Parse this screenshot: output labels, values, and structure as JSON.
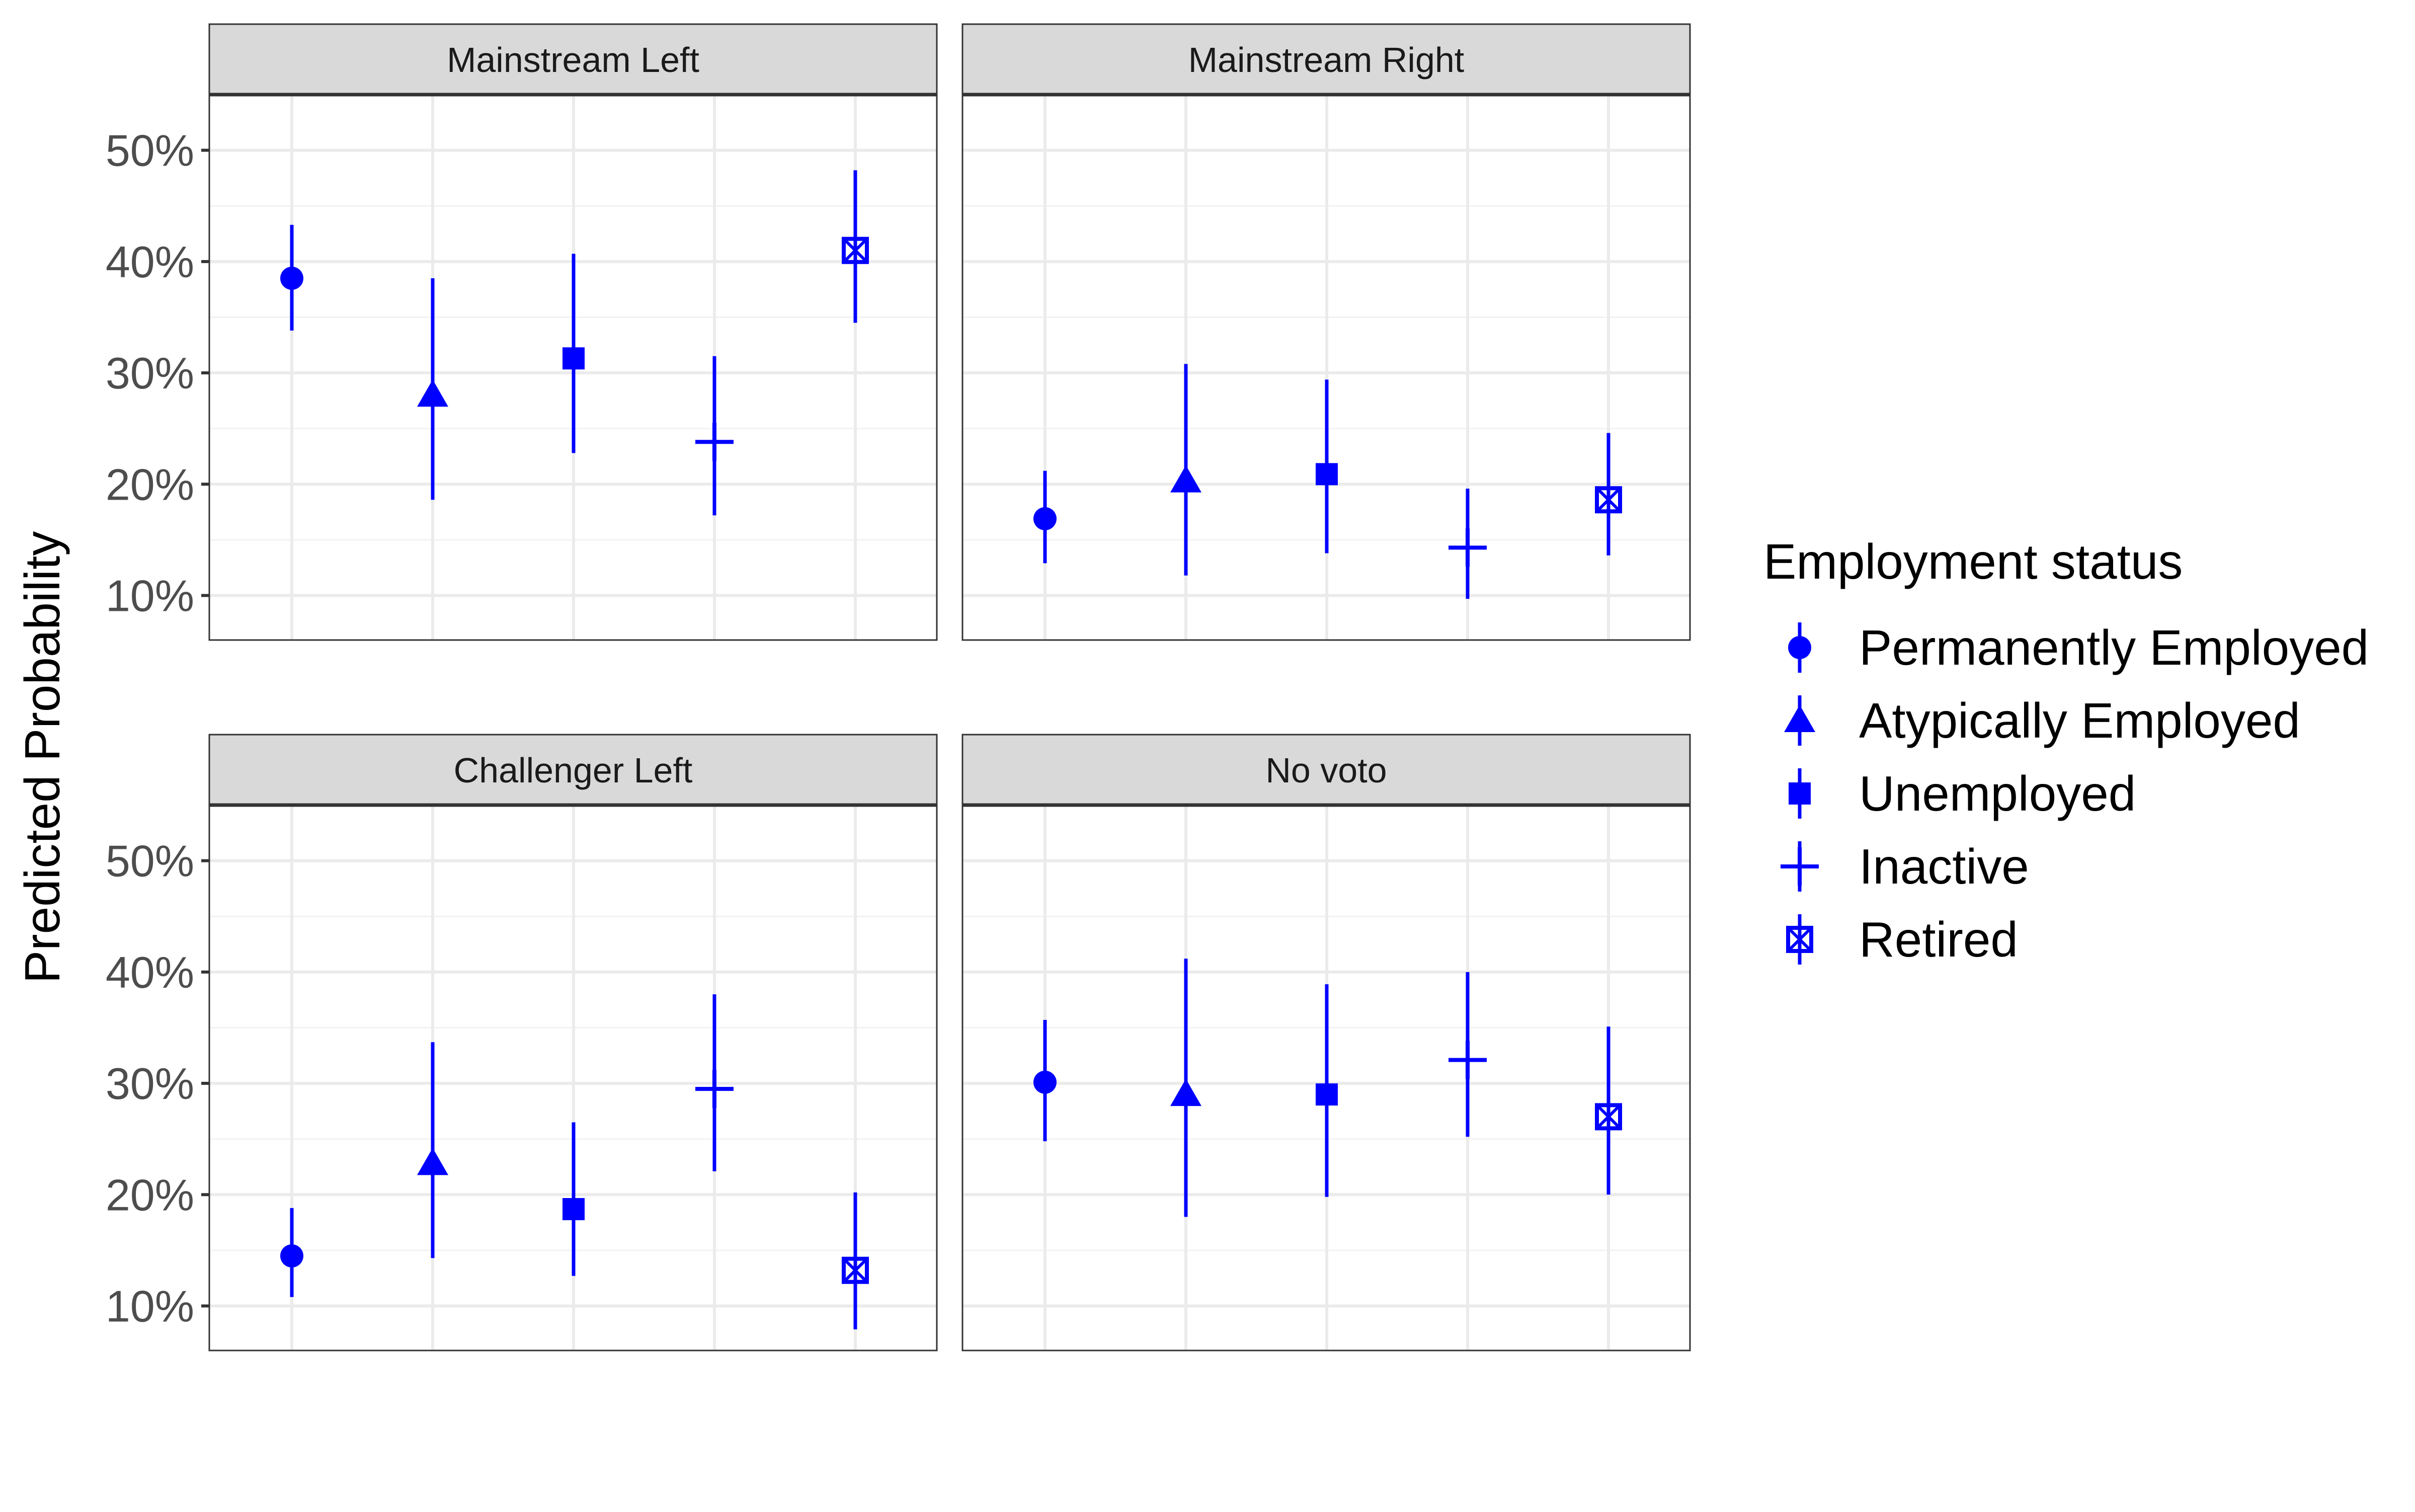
{
  "chart_data": {
    "type": "scatter",
    "subtype": "pointrange",
    "ylabel": "Predicted Probability",
    "ylim": [
      0.06,
      0.55
    ],
    "y_ticks": [
      0.1,
      0.2,
      0.3,
      0.4,
      0.5
    ],
    "y_tick_labels": [
      "10%",
      "20%",
      "30%",
      "40%",
      "50%"
    ],
    "grid": true,
    "legend": {
      "title": "Employment status",
      "position": "right",
      "entries": [
        {
          "label": "Permanently Employed",
          "shape": "circle"
        },
        {
          "label": "Atypically Employed",
          "shape": "triangle"
        },
        {
          "label": "Unemployed",
          "shape": "square"
        },
        {
          "label": "Inactive",
          "shape": "plus"
        },
        {
          "label": "Retired",
          "shape": "square-cross"
        }
      ]
    },
    "color": "#0000FF",
    "categories": [
      "Permanently Employed",
      "Atypically Employed",
      "Unemployed",
      "Inactive",
      "Retired"
    ],
    "panels": [
      {
        "title": "Mainstream Left",
        "estimates": [
          0.385,
          0.28,
          0.313,
          0.238,
          0.41
        ],
        "lower": [
          0.338,
          0.186,
          0.228,
          0.172,
          0.345
        ],
        "upper": [
          0.433,
          0.385,
          0.407,
          0.315,
          0.482
        ]
      },
      {
        "title": "Mainstream Right",
        "estimates": [
          0.169,
          0.203,
          0.209,
          0.143,
          0.186
        ],
        "lower": [
          0.129,
          0.118,
          0.138,
          0.097,
          0.136
        ],
        "upper": [
          0.212,
          0.308,
          0.294,
          0.196,
          0.246
        ]
      },
      {
        "title": "Challenger Left",
        "estimates": [
          0.145,
          0.228,
          0.187,
          0.295,
          0.132
        ],
        "lower": [
          0.108,
          0.143,
          0.127,
          0.221,
          0.079
        ],
        "upper": [
          0.188,
          0.337,
          0.265,
          0.38,
          0.202
        ]
      },
      {
        "title": "No voto",
        "estimates": [
          0.301,
          0.29,
          0.29,
          0.321,
          0.27
        ],
        "lower": [
          0.248,
          0.18,
          0.198,
          0.252,
          0.2
        ],
        "upper": [
          0.357,
          0.412,
          0.389,
          0.4,
          0.351
        ]
      }
    ]
  }
}
